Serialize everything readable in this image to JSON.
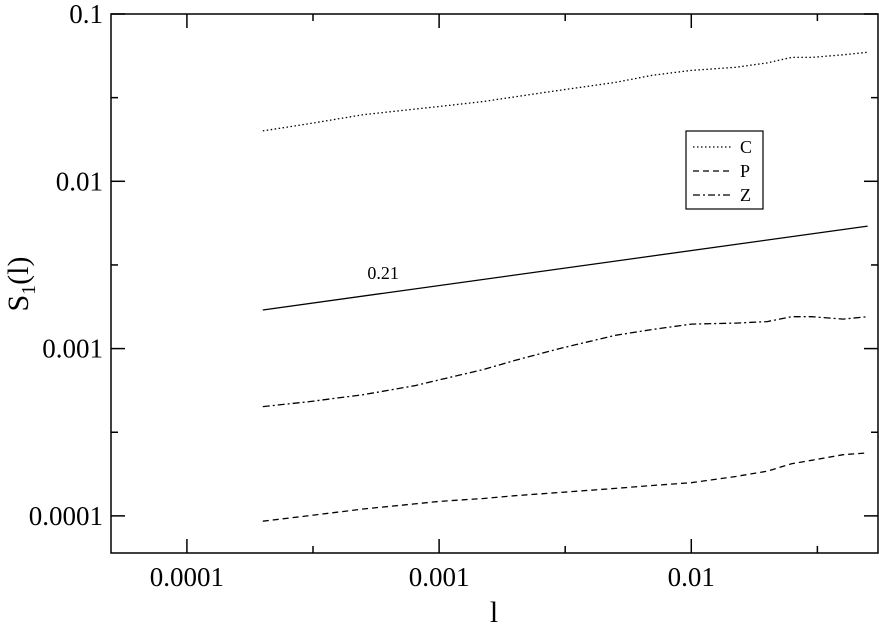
{
  "chart_data": {
    "type": "line",
    "title": "",
    "xlabel": "l",
    "ylabel_main": "S",
    "ylabel_sub": "1",
    "ylabel_tail": "(l)",
    "xscale": "log",
    "yscale": "log",
    "xlim": [
      5e-05,
      0.055
    ],
    "ylim": [
      6e-05,
      0.1
    ],
    "xticks": [
      {
        "value": 0.0001,
        "label": "0.0001"
      },
      {
        "value": 0.001,
        "label": "0.001"
      },
      {
        "value": 0.01,
        "label": "0.01"
      }
    ],
    "yticks": [
      {
        "value": 0.0001,
        "label": "0.0001"
      },
      {
        "value": 0.001,
        "label": "0.001"
      },
      {
        "value": 0.01,
        "label": "0.01"
      },
      {
        "value": 0.1,
        "label": "0.1"
      }
    ],
    "grid": false,
    "legend_position": "right",
    "series": [
      {
        "name": "C",
        "style": "dotted",
        "x": [
          0.0002,
          0.0003,
          0.0005,
          0.0008,
          0.001,
          0.0015,
          0.002,
          0.003,
          0.005,
          0.007,
          0.01,
          0.015,
          0.02,
          0.025,
          0.03,
          0.04,
          0.05
        ],
        "y": [
          0.02,
          0.022,
          0.025,
          0.027,
          0.028,
          0.03,
          0.032,
          0.035,
          0.039,
          0.043,
          0.046,
          0.048,
          0.051,
          0.055,
          0.055,
          0.057,
          0.059
        ]
      },
      {
        "name": "P",
        "style": "dashed",
        "x": [
          0.0002,
          0.0003,
          0.0005,
          0.0008,
          0.001,
          0.0015,
          0.002,
          0.003,
          0.005,
          0.007,
          0.01,
          0.015,
          0.02,
          0.025,
          0.03,
          0.04,
          0.05
        ],
        "y": [
          9.3e-05,
          0.0001,
          0.00011,
          0.000118,
          0.000122,
          0.000127,
          0.000132,
          0.000138,
          0.000146,
          0.000152,
          0.000158,
          0.000172,
          0.000185,
          0.000205,
          0.000215,
          0.000232,
          0.000238
        ]
      },
      {
        "name": "Z",
        "style": "dashdot",
        "x": [
          0.0002,
          0.0003,
          0.0005,
          0.0008,
          0.001,
          0.0015,
          0.002,
          0.003,
          0.005,
          0.007,
          0.01,
          0.015,
          0.02,
          0.025,
          0.03,
          0.04,
          0.05
        ],
        "y": [
          0.00045,
          0.00048,
          0.00053,
          0.0006,
          0.00065,
          0.00075,
          0.00085,
          0.001,
          0.0012,
          0.0013,
          0.0014,
          0.00142,
          0.00145,
          0.00155,
          0.00155,
          0.0015,
          0.00155
        ]
      },
      {
        "name": "",
        "style": "solid",
        "x": [
          0.0002,
          0.05
        ],
        "y": [
          0.0017,
          0.0054
        ]
      }
    ],
    "annotations": [
      {
        "text": "0.21",
        "x": 0.0006,
        "y": 0.0026
      }
    ]
  }
}
